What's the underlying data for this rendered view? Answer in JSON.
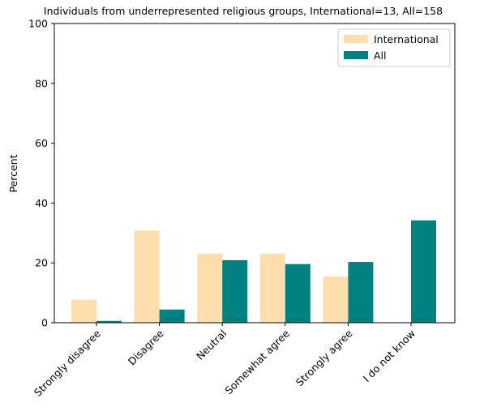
{
  "chart_data": {
    "type": "bar",
    "title": "Individuals from underrepresented religious groups, International=13, All=158",
    "xlabel": "",
    "ylabel": "Percent",
    "ylim": [
      0,
      100
    ],
    "yticks": [
      0,
      20,
      40,
      60,
      80,
      100
    ],
    "categories": [
      "Strongly disagree",
      "Disagree",
      "Neutral",
      "Somewhat agree",
      "Strongly agree",
      "I do not know"
    ],
    "series": [
      {
        "name": "International",
        "color": "#ffdead",
        "values": [
          7.7,
          30.8,
          23.1,
          23.1,
          15.4,
          0
        ]
      },
      {
        "name": "All",
        "color": "#008080",
        "values": [
          0.6,
          4.4,
          20.9,
          19.6,
          20.3,
          34.2
        ]
      }
    ],
    "grid": false,
    "legend_position": "top-right"
  }
}
